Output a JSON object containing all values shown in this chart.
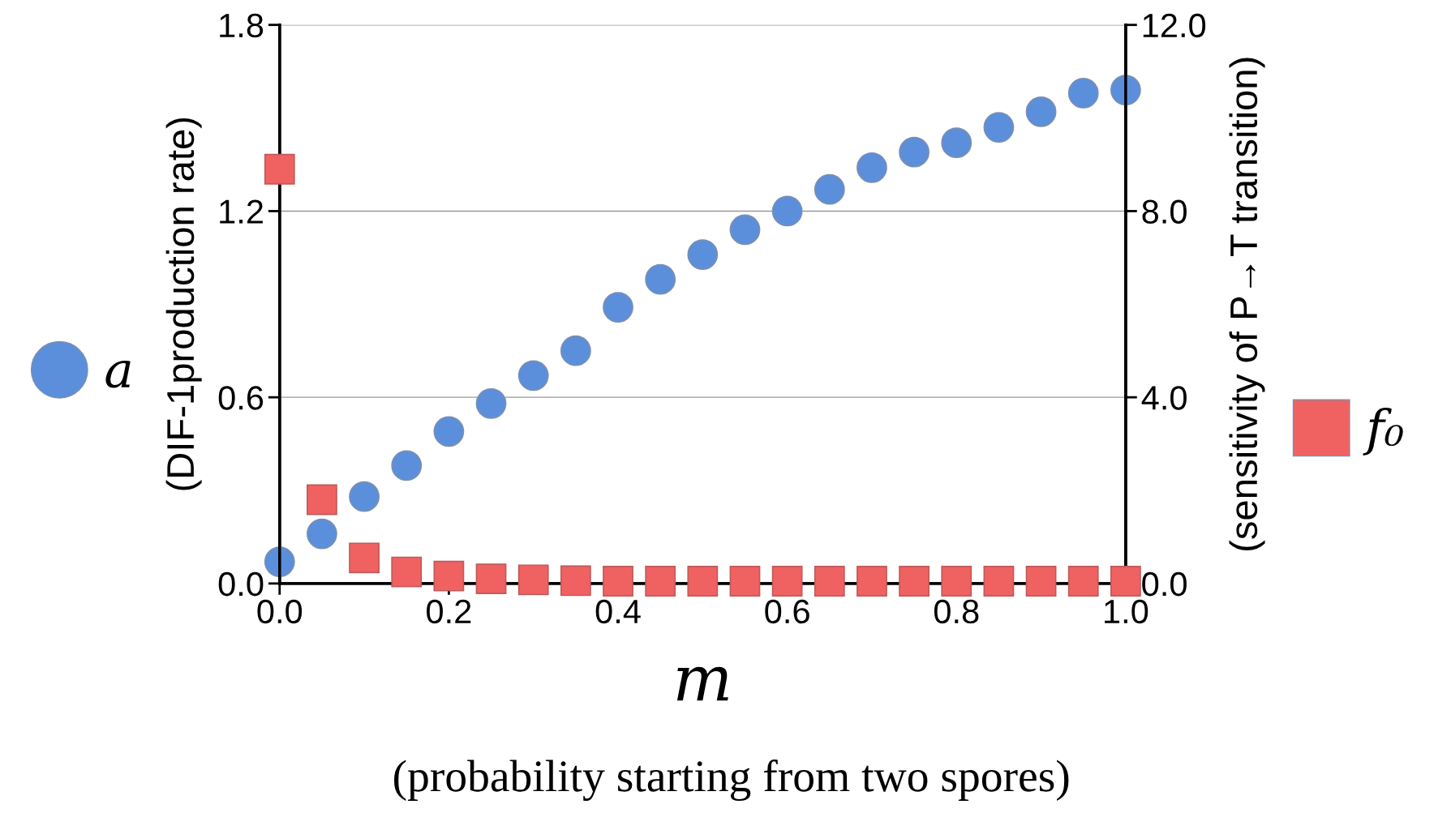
{
  "chart_data": {
    "type": "scatter",
    "xlabel": "m",
    "ylabel": "(DIF-1production rate)",
    "y2label": "(sensitivity of P→T transition)",
    "annotations": [
      "(probability starting from two spores)"
    ],
    "x": [
      0,
      0.05,
      0.1,
      0.15,
      0.2,
      0.25,
      0.3,
      0.35,
      0.4,
      0.45,
      0.5,
      0.55,
      0.6,
      0.65,
      0.7,
      0.75,
      0.8,
      0.85,
      0.9,
      0.95,
      1.0
    ],
    "series": [
      {
        "name": "a",
        "color": "#5b8fdc",
        "marker": "circle",
        "values": [
          0.07,
          0.16,
          0.28,
          0.38,
          0.49,
          0.58,
          0.67,
          0.75,
          0.89,
          0.98,
          1.06,
          1.14,
          1.2,
          1.27,
          1.34,
          1.39,
          1.42,
          1.47,
          1.52,
          1.58,
          1.59
        ]
      },
      {
        "name": "f₀",
        "color": "#f06262",
        "marker": "square",
        "axis": "y2",
        "values": [
          8.9,
          1.8,
          0.55,
          0.25,
          0.16,
          0.1,
          0.08,
          0.06,
          0.05,
          0.05,
          0.05,
          0.05,
          0.05,
          0.05,
          0.05,
          0.05,
          0.05,
          0.05,
          0.05,
          0.05,
          0.05
        ]
      }
    ],
    "xlim": [
      0,
      1
    ],
    "xticks": [
      {
        "value": 0,
        "label": "0.0"
      },
      {
        "value": 0.2,
        "label": "0.2"
      },
      {
        "value": 0.4,
        "label": "0.4"
      },
      {
        "value": 0.6,
        "label": "0.6"
      },
      {
        "value": 0.8,
        "label": "0.8"
      },
      {
        "value": 1,
        "label": "1.0"
      }
    ],
    "ylim": [
      0,
      1.8
    ],
    "yticks": [
      {
        "value": 0,
        "label": "0.0"
      },
      {
        "value": 0.6,
        "label": "0.6"
      },
      {
        "value": 1.2,
        "label": "1.2"
      },
      {
        "value": 1.8,
        "label": "1.8"
      }
    ],
    "y2lim": [
      0,
      12
    ],
    "y2ticks": [
      {
        "value": 0,
        "label": "0.0"
      },
      {
        "value": 4,
        "label": "4.0"
      },
      {
        "value": 8,
        "label": "8.0"
      },
      {
        "value": 12,
        "label": "12.0"
      }
    ],
    "grid": "y",
    "legend": "left"
  }
}
